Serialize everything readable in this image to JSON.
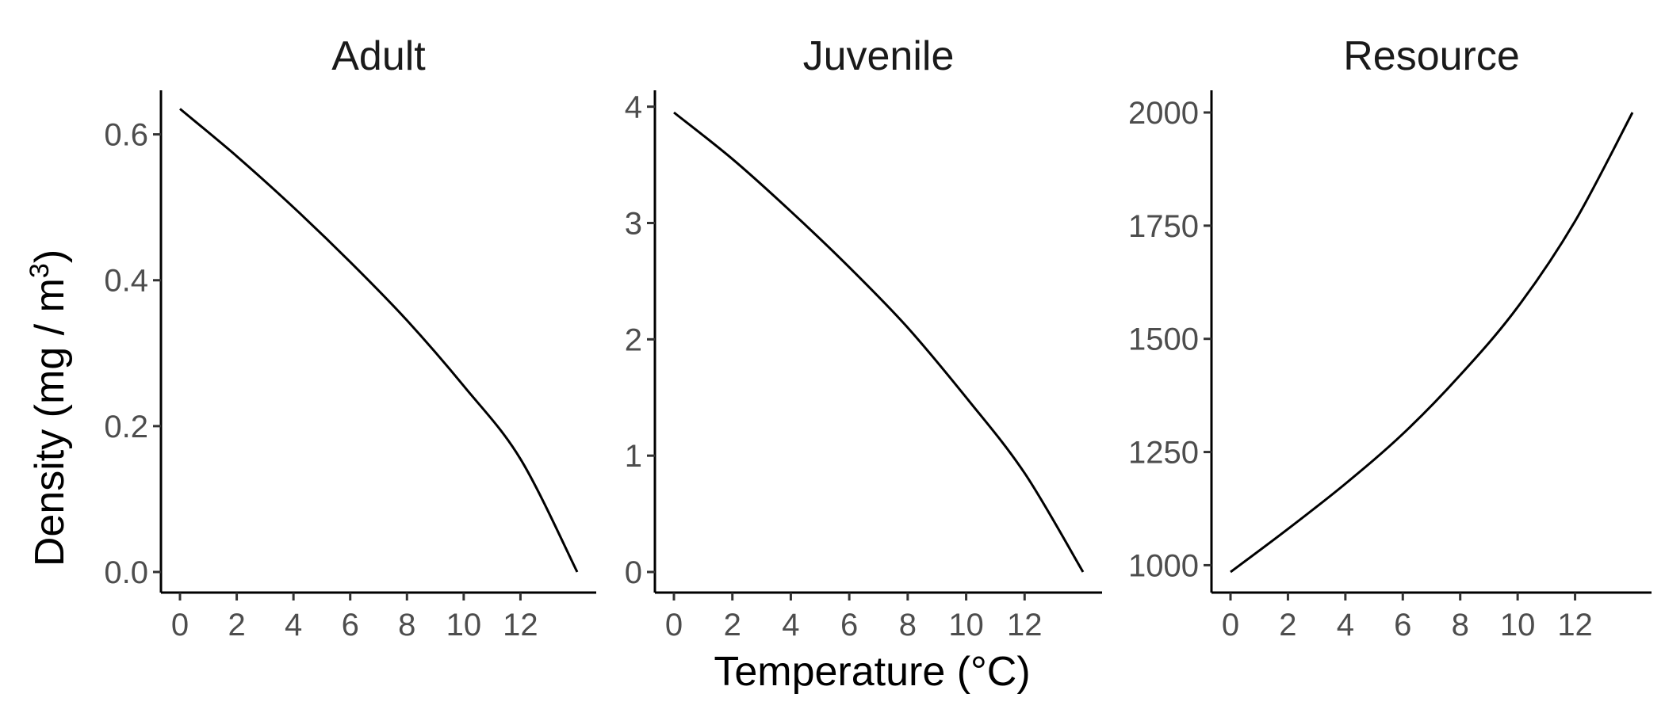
{
  "chart_data": {
    "type": "line",
    "xlabel": "Temperature (°C)",
    "ylabel_main": "Density (mg / m",
    "ylabel_sup": "3",
    "ylabel_close": ")",
    "panels": [
      {
        "title": "Adult",
        "xlim": [
          0,
          14
        ],
        "ylim": [
          0,
          0.63
        ],
        "x_ticks": [
          0,
          2,
          4,
          6,
          8,
          10,
          12
        ],
        "y_ticks": [
          0.0,
          0.2,
          0.4,
          0.6
        ],
        "y_tick_labels": [
          "0.0",
          "0.2",
          "0.4",
          "0.6"
        ],
        "series": [
          {
            "x": [
              0,
              2,
              4,
              6,
              8,
              10,
              12,
              14
            ],
            "y": [
              0.635,
              0.57,
              0.5,
              0.425,
              0.345,
              0.255,
              0.155,
              0.0
            ]
          }
        ]
      },
      {
        "title": "Juvenile",
        "xlim": [
          0,
          14
        ],
        "ylim": [
          0,
          3.95
        ],
        "x_ticks": [
          0,
          2,
          4,
          6,
          8,
          10,
          12
        ],
        "y_ticks": [
          0,
          1,
          2,
          3,
          4
        ],
        "y_tick_labels": [
          "0",
          "1",
          "2",
          "3",
          "4"
        ],
        "series": [
          {
            "x": [
              0,
              2,
              4,
              6,
              8,
              10,
              12,
              14
            ],
            "y": [
              3.95,
              3.55,
              3.1,
              2.62,
              2.1,
              1.5,
              0.85,
              0.0
            ]
          }
        ]
      },
      {
        "title": "Resource",
        "xlim": [
          0,
          14
        ],
        "ylim": [
          985,
          2000
        ],
        "x_ticks": [
          0,
          2,
          4,
          6,
          8,
          10,
          12
        ],
        "y_ticks": [
          1000,
          1250,
          1500,
          1750,
          2000
        ],
        "y_tick_labels": [
          "1000",
          "1250",
          "1500",
          "1750",
          "2000"
        ],
        "series": [
          {
            "x": [
              0,
              2,
              4,
              6,
              8,
              10,
              12,
              14
            ],
            "y": [
              985,
              1080,
              1180,
              1290,
              1420,
              1570,
              1760,
              2000
            ]
          }
        ]
      }
    ]
  }
}
